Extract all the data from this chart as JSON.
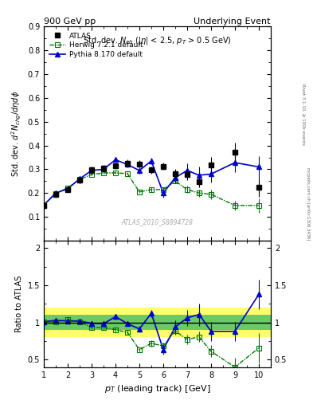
{
  "title_left": "900 GeV pp",
  "title_right": "Underlying Event",
  "watermark": "ATLAS_2010_S8894728",
  "rivet_label": "Rivet 3.1.10, ≥ 100k events",
  "arxiv_label": "mcplots.cern.ch [arXiv:1306.3436]",
  "subplot_title": "Std. dev. N_{ch} (|\\eta| < 2.5, p_{T} > 0.5 GeV)",
  "xlabel": "p_{T} (leading track) [GeV]",
  "ylabel_main": "Std. dev. d^{2}N_{chg}/d\\eta d\\phi",
  "ylabel_ratio": "Ratio to ATLAS",
  "atlas_x": [
    1.0,
    1.5,
    2.0,
    2.5,
    3.0,
    3.5,
    4.0,
    4.5,
    5.0,
    5.5,
    6.0,
    6.5,
    7.0,
    7.5,
    8.0,
    9.0,
    10.0
  ],
  "atlas_y": [
    0.148,
    0.195,
    0.213,
    0.254,
    0.298,
    0.305,
    0.315,
    0.325,
    0.323,
    0.298,
    0.313,
    0.282,
    0.278,
    0.248,
    0.318,
    0.372,
    0.225
  ],
  "atlas_yerr": [
    0.01,
    0.01,
    0.01,
    0.012,
    0.012,
    0.012,
    0.012,
    0.015,
    0.015,
    0.015,
    0.015,
    0.02,
    0.025,
    0.025,
    0.035,
    0.04,
    0.04
  ],
  "herwig_x": [
    1.0,
    1.5,
    2.0,
    2.5,
    3.0,
    3.5,
    4.0,
    4.5,
    5.0,
    5.5,
    6.0,
    6.5,
    7.0,
    7.5,
    8.0,
    9.0,
    10.0
  ],
  "herwig_y": [
    0.15,
    0.198,
    0.222,
    0.257,
    0.278,
    0.285,
    0.285,
    0.282,
    0.205,
    0.215,
    0.215,
    0.25,
    0.215,
    0.2,
    0.195,
    0.148,
    0.148
  ],
  "herwig_yerr": [
    0.005,
    0.005,
    0.005,
    0.005,
    0.005,
    0.005,
    0.005,
    0.005,
    0.005,
    0.01,
    0.01,
    0.01,
    0.015,
    0.015,
    0.02,
    0.02,
    0.03
  ],
  "pythia_x": [
    1.0,
    1.5,
    2.0,
    2.5,
    3.0,
    3.5,
    4.0,
    4.5,
    5.0,
    5.5,
    6.0,
    6.5,
    7.0,
    7.5,
    8.0,
    9.0,
    10.0
  ],
  "pythia_y": [
    0.15,
    0.2,
    0.218,
    0.26,
    0.295,
    0.3,
    0.34,
    0.32,
    0.295,
    0.335,
    0.2,
    0.265,
    0.295,
    0.275,
    0.28,
    0.328,
    0.31
  ],
  "pythia_yerr": [
    0.005,
    0.005,
    0.005,
    0.008,
    0.01,
    0.01,
    0.01,
    0.012,
    0.012,
    0.015,
    0.02,
    0.025,
    0.03,
    0.035,
    0.035,
    0.04,
    0.045
  ],
  "herwig_ratio_x": [
    1.0,
    1.5,
    2.0,
    2.5,
    3.0,
    3.5,
    4.0,
    4.5,
    5.0,
    5.5,
    6.0,
    6.5,
    7.0,
    7.5,
    8.0,
    9.0,
    10.0
  ],
  "herwig_ratio_y": [
    1.01,
    1.01,
    1.04,
    1.01,
    0.932,
    0.935,
    0.904,
    0.868,
    0.635,
    0.72,
    0.687,
    0.887,
    0.773,
    0.807,
    0.614,
    0.4,
    0.658
  ],
  "herwig_ratio_yerr": [
    0.03,
    0.03,
    0.03,
    0.03,
    0.025,
    0.025,
    0.025,
    0.025,
    0.025,
    0.04,
    0.04,
    0.05,
    0.06,
    0.07,
    0.08,
    0.13,
    0.2
  ],
  "pythia_ratio_x": [
    1.0,
    1.5,
    2.0,
    2.5,
    3.0,
    3.5,
    4.0,
    4.5,
    5.0,
    5.5,
    6.0,
    6.5,
    7.0,
    7.5,
    8.0,
    9.0,
    10.0
  ],
  "pythia_ratio_y": [
    1.01,
    1.03,
    1.02,
    1.02,
    0.99,
    0.984,
    1.079,
    0.985,
    0.914,
    1.124,
    0.638,
    0.94,
    1.062,
    1.109,
    0.882,
    0.882,
    1.378
  ],
  "pythia_ratio_yerr": [
    0.02,
    0.025,
    0.025,
    0.03,
    0.03,
    0.03,
    0.035,
    0.035,
    0.04,
    0.05,
    0.065,
    0.09,
    0.11,
    0.15,
    0.13,
    0.13,
    0.2
  ],
  "atlas_color": "#000000",
  "herwig_color": "#007700",
  "pythia_color": "#0000cc",
  "band_yellow": [
    0.8,
    1.2
  ],
  "band_green": [
    0.9,
    1.1
  ],
  "atlas_band_x_edges": [
    1.0,
    1.5,
    2.0,
    2.5,
    3.0,
    3.5,
    4.0,
    4.5,
    5.0,
    5.5,
    6.0,
    6.5,
    7.0,
    7.5,
    8.0,
    9.0,
    10.0,
    10.5
  ],
  "atlas_band_rel_err": [
    0.07,
    0.05,
    0.05,
    0.05,
    0.04,
    0.04,
    0.04,
    0.05,
    0.05,
    0.05,
    0.05,
    0.07,
    0.09,
    0.1,
    0.11,
    0.11,
    0.18
  ],
  "xlim": [
    1.0,
    10.5
  ],
  "ylim_main": [
    0.0,
    0.9
  ],
  "ylim_ratio": [
    0.4,
    2.1
  ],
  "yticks_main": [
    0.1,
    0.2,
    0.3,
    0.4,
    0.5,
    0.6,
    0.7,
    0.8,
    0.9
  ],
  "yticks_ratio": [
    0.5,
    1.0,
    1.5,
    2.0
  ],
  "yticks_ratio_labels": [
    "0.5",
    "1",
    "1.5",
    "2"
  ],
  "xticks": [
    1,
    2,
    3,
    4,
    5,
    6,
    7,
    8,
    9,
    10
  ],
  "bg_color": "#f0f0f0"
}
